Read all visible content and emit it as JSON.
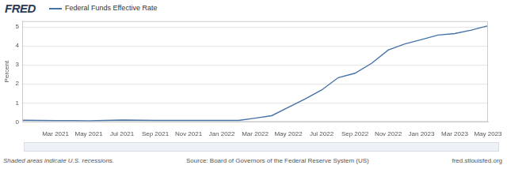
{
  "header": {
    "logo": "FRED"
  },
  "chart_data": {
    "type": "line",
    "y_label": "Percent",
    "categories": [
      null,
      null,
      "Mar 2021",
      null,
      "May 2021",
      null,
      "Jul 2021",
      null,
      "Sep 2021",
      null,
      "Nov 2021",
      null,
      "Jan 2022",
      null,
      "Mar 2022",
      null,
      "May 2022",
      null,
      "Jul 2022",
      null,
      "Sep 2022",
      null,
      "Nov 2022",
      null,
      "Jan 2023",
      null,
      "Mar 2023",
      null,
      "May 2023"
    ],
    "series": [
      {
        "name": "Federal Funds Effective Rate",
        "color": "#4572a7",
        "values": [
          0.09,
          0.08,
          0.07,
          0.07,
          0.06,
          0.08,
          0.1,
          0.09,
          0.08,
          0.08,
          0.08,
          0.08,
          0.08,
          0.08,
          0.2,
          0.33,
          0.77,
          1.21,
          1.68,
          2.33,
          2.56,
          3.08,
          3.78,
          4.1,
          4.33,
          4.57,
          4.65,
          4.83,
          5.06
        ]
      }
    ],
    "ylim": [
      0,
      5.3
    ],
    "yticks": [
      0,
      1,
      2,
      3,
      4,
      5
    ],
    "grid": true
  },
  "footer": {
    "note": "Shaded areas indicate U.S. recessions.",
    "source": "Source: Board of Governors of the Federal Reserve System (US)",
    "url": "fred.stlouisfed.org"
  }
}
